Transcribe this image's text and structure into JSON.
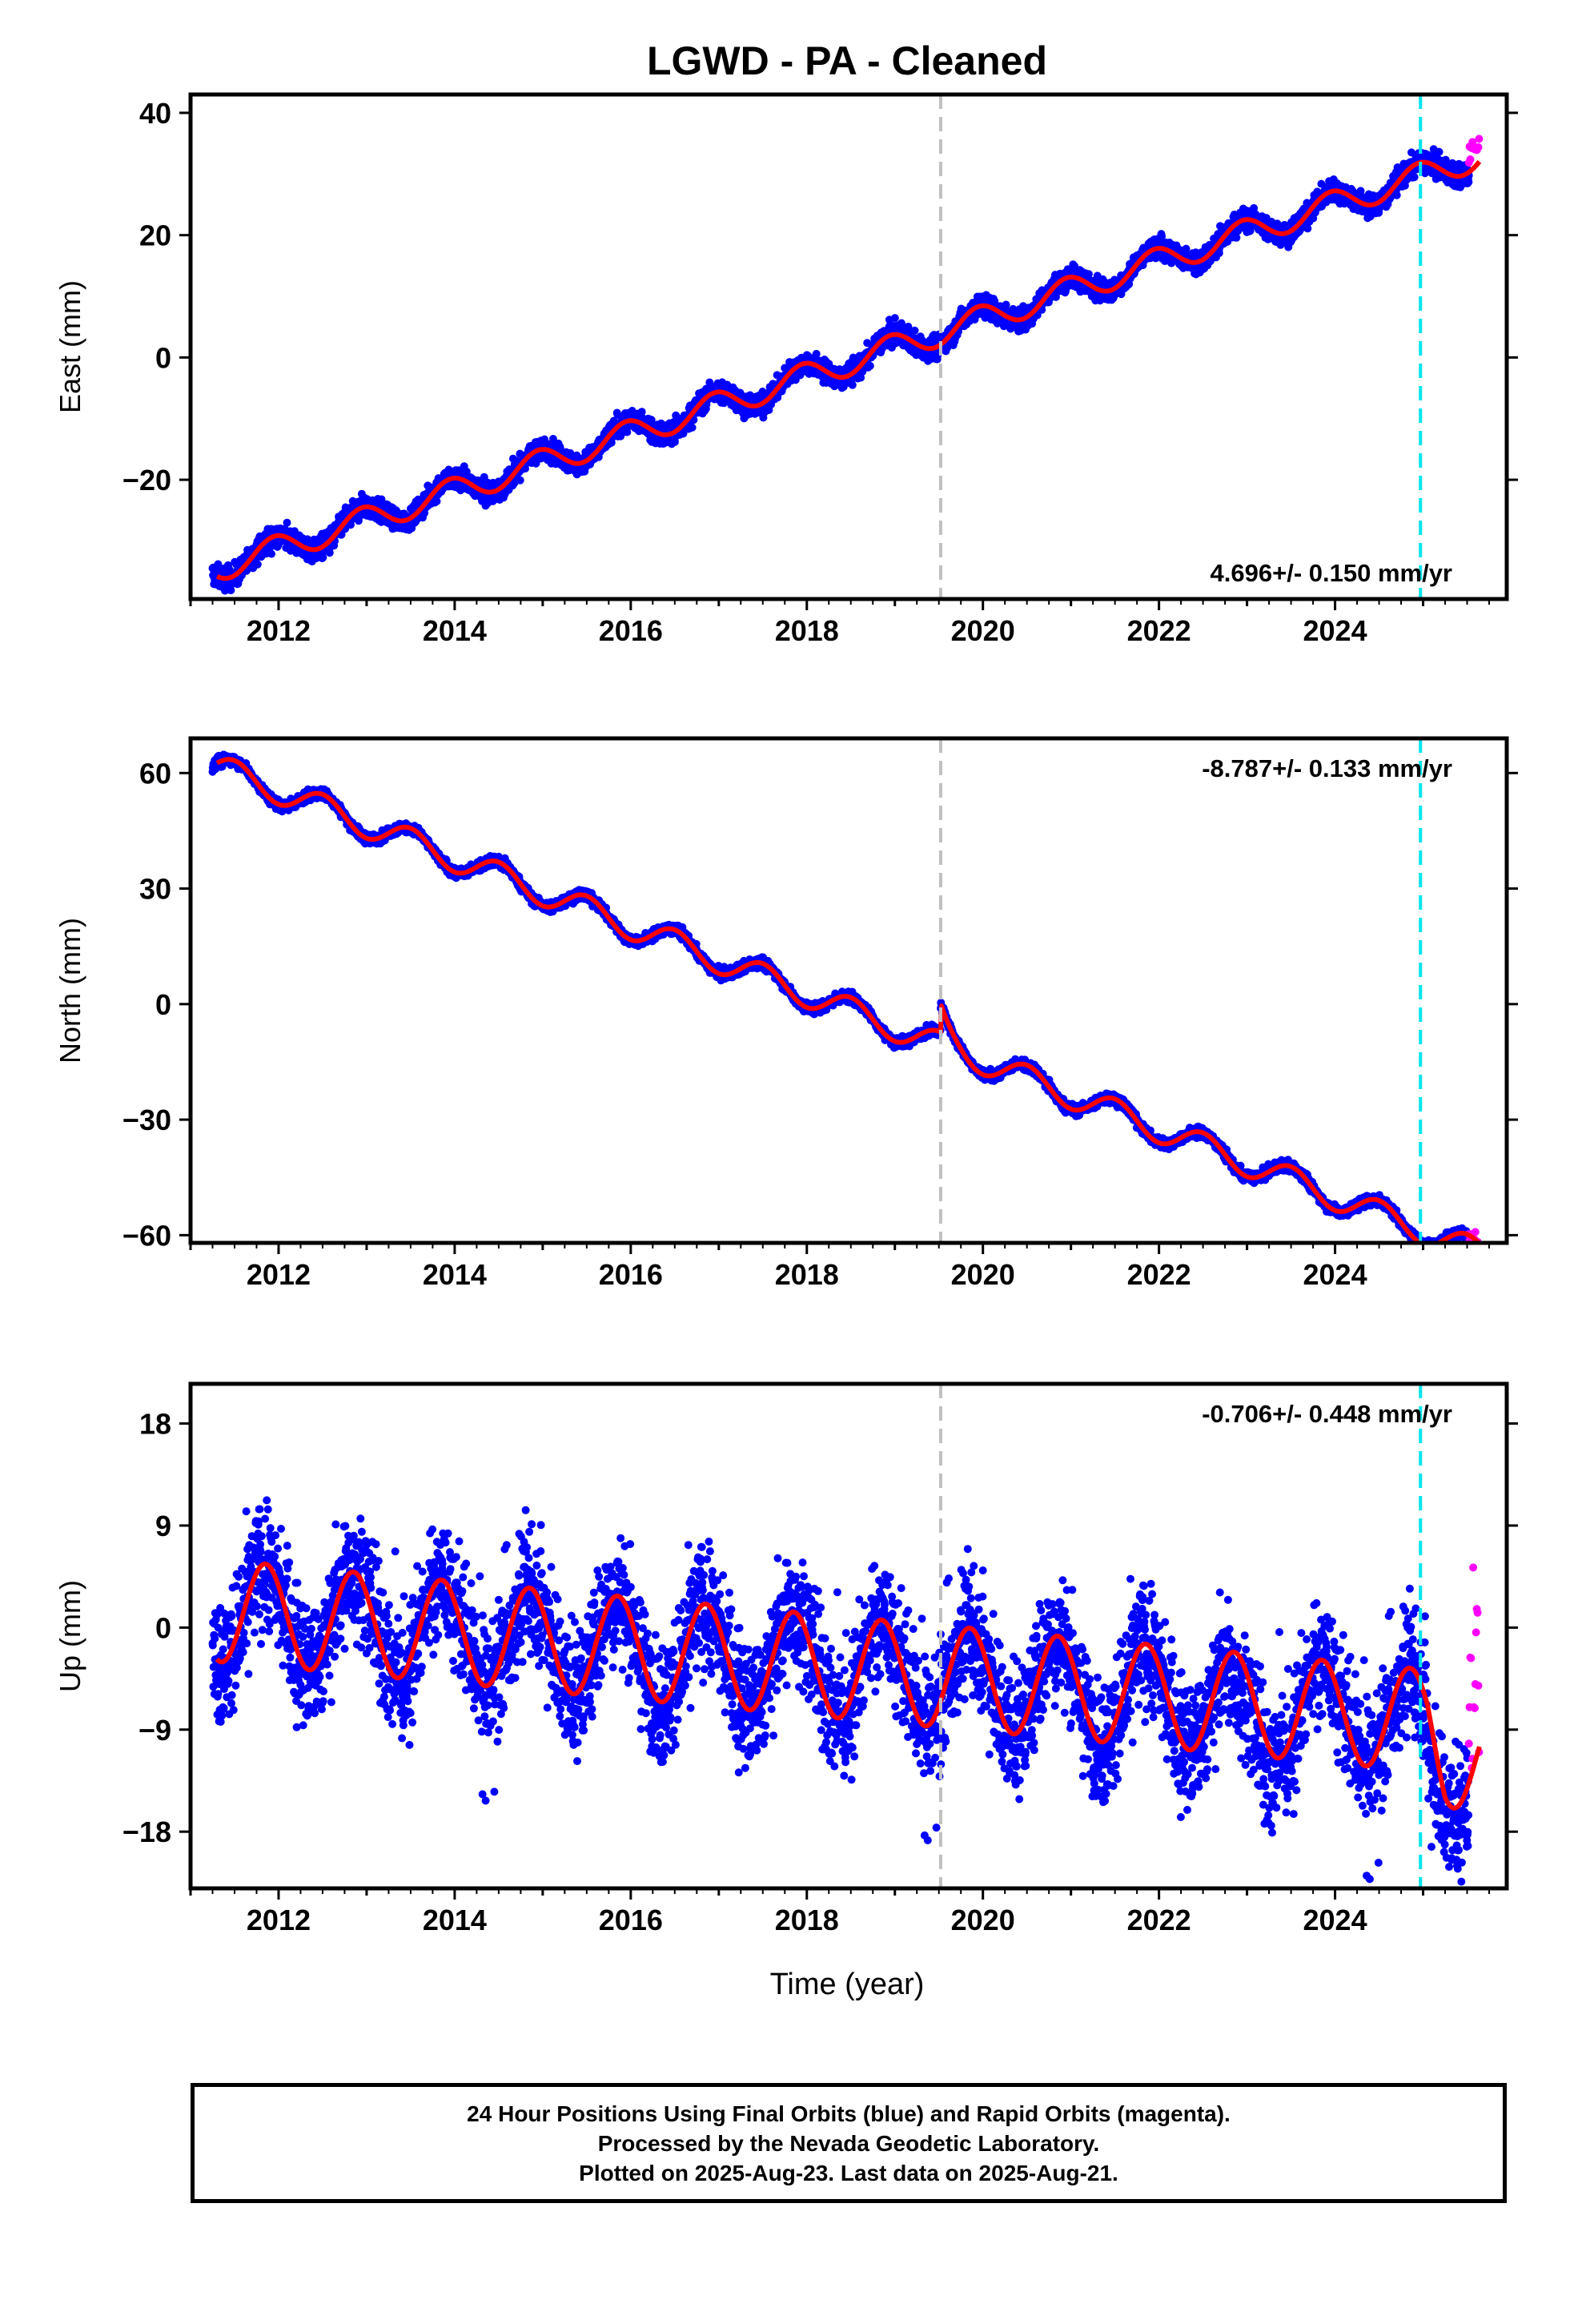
{
  "title": "LGWD  - PA - Cleaned",
  "xlabel": "Time (year)",
  "footer": {
    "line1": "24 Hour Positions Using Final Orbits (blue) and Rapid Orbits (magenta).",
    "line2": "Processed by the Nevada Geodetic Laboratory.",
    "line3": "Plotted on 2025-Aug-23. Last data on 2025-Aug-21."
  },
  "colors": {
    "final_orbits": "#0000ff",
    "rapid_orbits": "#ff00ff",
    "model_fit": "#ff0000",
    "event_line_gray": "#c0c0c0",
    "event_line_cyan": "#00e5ee"
  },
  "chart_data": [
    {
      "type": "scatter",
      "component": "East",
      "ylabel": "East (mm)",
      "rate_label": "4.696+/- 0.150 mm/yr",
      "rate_mm_per_yr": 4.696,
      "rate_sigma": 0.15,
      "xlim": [
        2011.0,
        2025.95
      ],
      "ylim": [
        -39.5,
        43
      ],
      "xticks": [
        2012,
        2014,
        2016,
        2018,
        2020,
        2022,
        2024
      ],
      "yticks": [
        -20,
        0,
        20,
        40
      ],
      "ytick_labels": [
        "−20",
        "0",
        "20",
        "40"
      ],
      "vertical_lines": [
        {
          "x": 2019.52,
          "color": "gray",
          "style": "dashed"
        },
        {
          "x": 2024.97,
          "color": "cyan",
          "style": "dashed"
        }
      ],
      "model": {
        "start": {
          "x": 2011.3,
          "y": -34.5
        },
        "rate": 4.696,
        "annual_amplitude": 2.2,
        "annual_peak_x_fraction": 0.95,
        "noise_scatter_mm": 1.3
      },
      "data_span": {
        "final": [
          2011.25,
          2025.52
        ],
        "rapid": [
          2025.52,
          2025.64
        ]
      },
      "grid": false
    },
    {
      "type": "scatter",
      "component": "North",
      "ylabel": "North (mm)",
      "rate_label": "-8.787+/- 0.133 mm/yr",
      "rate_mm_per_yr": -8.787,
      "rate_sigma": 0.133,
      "xlim": [
        2011.0,
        2025.95
      ],
      "ylim": [
        -62,
        69
      ],
      "xticks": [
        2012,
        2014,
        2016,
        2018,
        2020,
        2022,
        2024
      ],
      "yticks": [
        -60,
        -30,
        0,
        30,
        60
      ],
      "ytick_labels": [
        "−60",
        "−30",
        "0",
        "30",
        "60"
      ],
      "vertical_lines": [
        {
          "x": 2019.52,
          "color": "gray",
          "style": "dashed"
        },
        {
          "x": 2024.97,
          "color": "cyan",
          "style": "dashed"
        }
      ],
      "model": {
        "start": {
          "x": 2011.3,
          "y": 61.5
        },
        "rate": -8.787,
        "annual_amplitude": 3.5,
        "annual_peak_x_fraction": 0.5,
        "offset_at_2019_52_mm": 7.5,
        "noise_scatter_mm": 1.0
      },
      "data_span": {
        "final": [
          2011.25,
          2025.52
        ],
        "rapid": [
          2025.52,
          2025.64
        ]
      },
      "grid": false
    },
    {
      "type": "scatter",
      "component": "Up",
      "ylabel": "Up (mm)",
      "rate_label": "-0.706+/- 0.448 mm/yr",
      "rate_mm_per_yr": -0.706,
      "rate_sigma": 0.448,
      "xlim": [
        2011.0,
        2025.95
      ],
      "ylim": [
        -23,
        21.5
      ],
      "xticks": [
        2012,
        2014,
        2016,
        2018,
        2020,
        2022,
        2024
      ],
      "yticks": [
        -18,
        -9,
        0,
        9,
        18
      ],
      "ytick_labels": [
        "−18",
        "−9",
        "0",
        "9",
        "18"
      ],
      "vertical_lines": [
        {
          "x": 2019.52,
          "color": "gray",
          "style": "dashed"
        },
        {
          "x": 2024.97,
          "color": "cyan",
          "style": "dashed"
        }
      ],
      "model": {
        "start": {
          "x": 2011.3,
          "y": 1.5
        },
        "mean_offset": 1.5,
        "rate": -0.706,
        "annual_amplitude": 4.5,
        "annual_peak_x_fraction": 0.85,
        "noise_scatter_mm": 3.8
      },
      "data_span": {
        "final": [
          2011.25,
          2025.52
        ],
        "rapid": [
          2025.52,
          2025.64
        ]
      },
      "grid": false
    }
  ]
}
